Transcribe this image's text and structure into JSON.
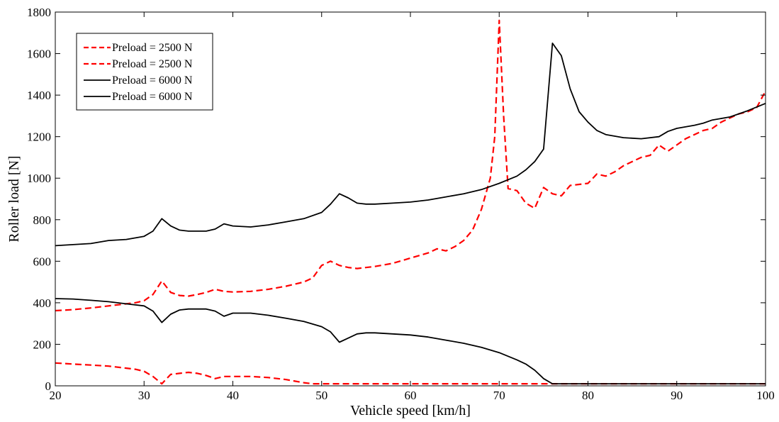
{
  "chart_data": {
    "type": "line",
    "title": "",
    "xlabel": "Vehicle speed [km/h]",
    "ylabel": "Roller load [N]",
    "xlim": [
      20,
      100
    ],
    "ylim": [
      0,
      1800
    ],
    "xticks": [
      "20",
      "30",
      "40",
      "50",
      "60",
      "70",
      "80",
      "90",
      "100"
    ],
    "yticks": [
      "0",
      "200",
      "400",
      "600",
      "800",
      "1000",
      "1200",
      "1400",
      "1600",
      "1800"
    ],
    "grid": false,
    "legend_position": "top-left",
    "series": [
      {
        "name": "Preload = 2500 N",
        "color": "#ff0000",
        "dash": "dashed",
        "x": [
          20,
          22,
          24,
          26,
          28,
          29,
          30,
          31,
          32,
          33,
          34,
          35,
          36,
          37,
          38,
          39,
          40,
          42,
          44,
          46,
          48,
          49,
          50,
          51,
          52,
          53,
          54,
          56,
          58,
          60,
          62,
          63,
          64,
          65,
          66,
          67,
          68,
          69,
          69.5,
          70,
          70.5,
          71,
          72,
          73,
          74,
          75,
          76,
          77,
          78,
          79,
          80,
          81,
          82,
          83,
          84,
          85,
          86,
          87,
          88,
          89,
          90,
          91,
          92,
          93,
          94,
          95,
          96,
          97,
          98,
          99,
          100
        ],
        "y": [
          362,
          367,
          375,
          385,
          395,
          400,
          410,
          440,
          505,
          450,
          435,
          432,
          440,
          450,
          465,
          455,
          452,
          455,
          465,
          480,
          500,
          520,
          580,
          600,
          580,
          570,
          565,
          575,
          590,
          615,
          640,
          660,
          650,
          670,
          700,
          750,
          850,
          1000,
          1200,
          1760,
          1300,
          950,
          940,
          880,
          855,
          955,
          925,
          915,
          965,
          970,
          975,
          1020,
          1010,
          1030,
          1060,
          1080,
          1100,
          1110,
          1160,
          1130,
          1160,
          1190,
          1210,
          1230,
          1240,
          1270,
          1290,
          1310,
          1320,
          1340,
          1420
        ]
      },
      {
        "name": "Preload = 2500 N",
        "color": "#ff0000",
        "dash": "dashed",
        "x": [
          20,
          22,
          24,
          26,
          28,
          29,
          30,
          31,
          32,
          33,
          34,
          35,
          36,
          37,
          38,
          39,
          40,
          42,
          44,
          46,
          48,
          49,
          50,
          52,
          56,
          60,
          65,
          70,
          75,
          80,
          85,
          90,
          95,
          100
        ],
        "y": [
          110,
          105,
          100,
          95,
          85,
          80,
          70,
          45,
          10,
          55,
          60,
          65,
          60,
          50,
          35,
          45,
          45,
          45,
          40,
          30,
          15,
          10,
          10,
          10,
          10,
          10,
          10,
          10,
          10,
          10,
          10,
          10,
          10,
          10
        ]
      },
      {
        "name": "Preload = 6000 N",
        "color": "#000000",
        "dash": "solid",
        "x": [
          20,
          22,
          24,
          26,
          28,
          30,
          31,
          32,
          33,
          34,
          35,
          36,
          37,
          38,
          39,
          40,
          42,
          44,
          46,
          48,
          50,
          51,
          52,
          53,
          54,
          55,
          56,
          58,
          60,
          62,
          64,
          66,
          68,
          70,
          72,
          73,
          74,
          75,
          76,
          77,
          78,
          79,
          80,
          81,
          82,
          84,
          86,
          88,
          89,
          90,
          92,
          93,
          94,
          96,
          98,
          100
        ],
        "y": [
          675,
          680,
          685,
          700,
          705,
          720,
          745,
          805,
          770,
          750,
          745,
          745,
          745,
          755,
          780,
          770,
          765,
          775,
          790,
          805,
          835,
          875,
          925,
          905,
          880,
          875,
          875,
          880,
          885,
          895,
          910,
          925,
          945,
          975,
          1010,
          1040,
          1080,
          1140,
          1650,
          1590,
          1430,
          1320,
          1270,
          1230,
          1210,
          1195,
          1190,
          1200,
          1225,
          1240,
          1255,
          1265,
          1280,
          1295,
          1325,
          1360
        ]
      },
      {
        "name": "Preload = 6000 N",
        "color": "#000000",
        "dash": "solid",
        "x": [
          20,
          22,
          24,
          26,
          28,
          30,
          31,
          32,
          33,
          34,
          35,
          36,
          37,
          38,
          39,
          40,
          42,
          44,
          46,
          48,
          50,
          51,
          52,
          53,
          54,
          55,
          56,
          58,
          60,
          62,
          64,
          66,
          68,
          70,
          72,
          73,
          74,
          75,
          76,
          80,
          85,
          90,
          95,
          100
        ],
        "y": [
          420,
          418,
          412,
          405,
          395,
          385,
          360,
          305,
          345,
          365,
          370,
          370,
          370,
          360,
          335,
          350,
          350,
          340,
          325,
          310,
          285,
          260,
          210,
          230,
          250,
          255,
          255,
          250,
          245,
          235,
          220,
          205,
          185,
          160,
          125,
          105,
          75,
          35,
          10,
          10,
          10,
          10,
          10,
          10
        ]
      }
    ]
  }
}
